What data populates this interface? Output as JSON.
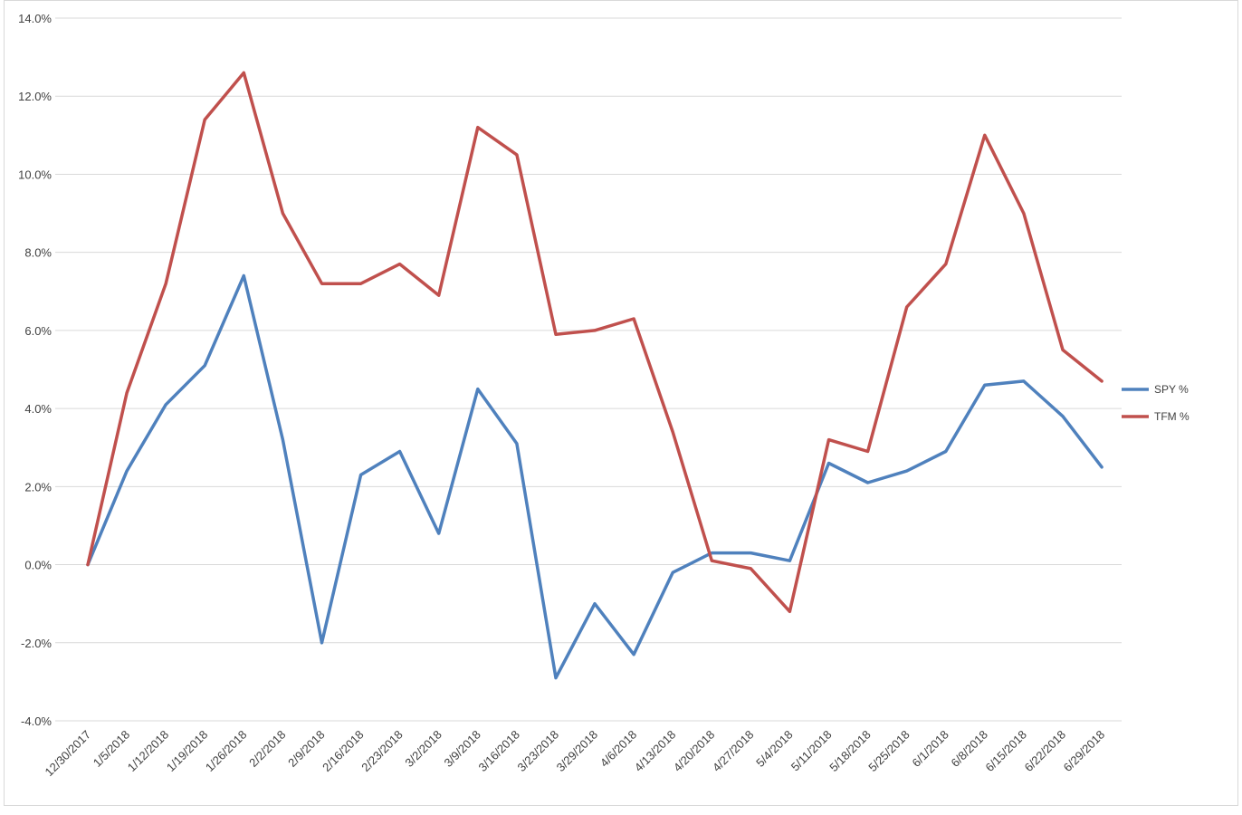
{
  "chart_data": {
    "type": "line",
    "title": "",
    "xlabel": "",
    "ylabel": "",
    "categories": [
      "12/30/2017",
      "1/5/2018",
      "1/12/2018",
      "1/19/2018",
      "1/26/2018",
      "2/2/2018",
      "2/9/2018",
      "2/16/2018",
      "2/23/2018",
      "3/2/2018",
      "3/9/2018",
      "3/16/2018",
      "3/23/2018",
      "3/29/2018",
      "4/6/2018",
      "4/13/2018",
      "4/20/2018",
      "4/27/2018",
      "5/4/2018",
      "5/11/2018",
      "5/18/2018",
      "5/25/2018",
      "6/1/2018",
      "6/8/2018",
      "6/15/2018",
      "6/22/2018",
      "6/29/2018"
    ],
    "ylim": [
      -4.0,
      14.0
    ],
    "y_ticks": [
      "-4.0%",
      "-2.0%",
      "0.0%",
      "2.0%",
      "4.0%",
      "6.0%",
      "8.0%",
      "10.0%",
      "12.0%",
      "14.0%"
    ],
    "y_tick_values": [
      -4,
      -2,
      0,
      2,
      4,
      6,
      8,
      10,
      12,
      14
    ],
    "grid": true,
    "legend_position": "right",
    "series": [
      {
        "name": "SPY %",
        "color": "#4f81bd",
        "values": [
          0.0,
          2.4,
          4.1,
          5.1,
          7.4,
          3.2,
          -2.0,
          2.3,
          2.9,
          0.8,
          4.5,
          3.1,
          -2.9,
          -1.0,
          -2.3,
          -0.2,
          0.3,
          0.3,
          0.1,
          2.6,
          2.1,
          2.4,
          2.9,
          4.6,
          4.7,
          3.8,
          2.5
        ]
      },
      {
        "name": "TFM %",
        "color": "#c0504d",
        "values": [
          0.0,
          4.4,
          7.2,
          11.4,
          12.6,
          9.0,
          7.2,
          7.2,
          7.7,
          6.9,
          11.2,
          10.5,
          5.9,
          6.0,
          6.3,
          3.4,
          0.1,
          -0.1,
          -1.2,
          3.2,
          2.9,
          6.6,
          7.7,
          11.0,
          9.0,
          5.5,
          4.7
        ]
      }
    ]
  }
}
